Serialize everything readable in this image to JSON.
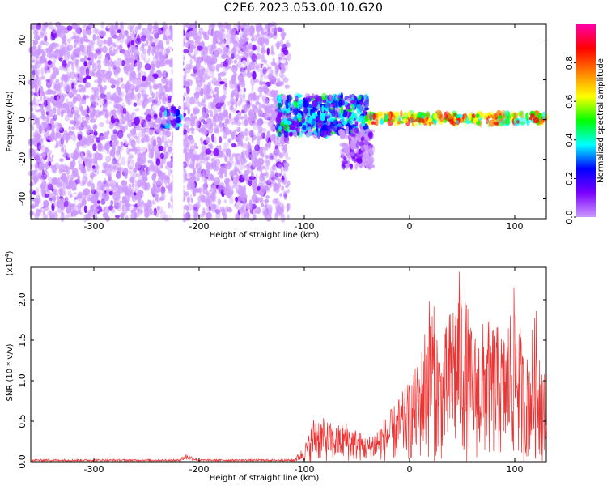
{
  "figure": {
    "title": "C2E6.2023.053.00.10.G20"
  },
  "chart_data": [
    {
      "type": "heatmap",
      "title": "C2E6.2023.053.00.10.G20",
      "xlabel": "Height of straight line (km)",
      "ylabel": "Frequency (Hz)",
      "xlim": [
        -360,
        130
      ],
      "ylim": [
        -50,
        48
      ],
      "xticks": [
        -300,
        -200,
        -100,
        0,
        100
      ],
      "yticks": [
        -40,
        -20,
        0,
        20,
        40
      ],
      "colorbar": {
        "label": "Normalized spectral amplitude",
        "range": [
          0,
          1
        ],
        "ticks": [
          0.0,
          0.2,
          0.4,
          0.6,
          0.8
        ],
        "colors": [
          "#ffffff",
          "#cc99ff",
          "#7a00ff",
          "#0000ff",
          "#00ffff",
          "#00ff00",
          "#ffff00",
          "#ff8000",
          "#ff0000",
          "#ff00aa"
        ]
      },
      "regions": [
        {
          "name": "diffuse noise",
          "x": [
            -360,
            -115
          ],
          "freq": [
            -50,
            48
          ],
          "amplitude": 0.12
        },
        {
          "name": "noise gap",
          "x": [
            -225,
            -215
          ],
          "freq": [
            -50,
            48
          ],
          "amplitude": 0.02
        },
        {
          "name": "spot",
          "x": [
            -235,
            -218
          ],
          "freq": [
            -4,
            6
          ],
          "amplitude": 0.3
        },
        {
          "name": "turbulent band",
          "x": [
            -125,
            -40
          ],
          "freq": [
            -8,
            12
          ],
          "amplitude": 0.35
        },
        {
          "name": "tail",
          "x": [
            -65,
            -35
          ],
          "freq": [
            -24,
            -5
          ],
          "amplitude": 0.15
        },
        {
          "name": "stable line",
          "x": [
            -40,
            130
          ],
          "freq": [
            -2,
            3
          ],
          "amplitude": 0.8
        }
      ]
    },
    {
      "type": "line",
      "xlabel": "Height of straight line (km)",
      "ylabel": "SNR (10 * v/v)",
      "scale_label": "(x10",
      "scale_exponent": "4",
      "scale_close": ")",
      "xlim": [
        -360,
        130
      ],
      "ylim": [
        0,
        2.4
      ],
      "xticks": [
        -300,
        -200,
        -100,
        0,
        100
      ],
      "yticks": [
        0.0,
        0.5,
        1.0,
        1.5,
        2.0
      ],
      "color": "#ee3333",
      "envelope": [
        {
          "x": -360,
          "y": 0.03
        },
        {
          "x": -220,
          "y": 0.03
        },
        {
          "x": -212,
          "y": 0.1
        },
        {
          "x": -200,
          "y": 0.03
        },
        {
          "x": -110,
          "y": 0.03
        },
        {
          "x": -100,
          "y": 0.2
        },
        {
          "x": -90,
          "y": 0.6
        },
        {
          "x": -70,
          "y": 0.45
        },
        {
          "x": -60,
          "y": 0.5
        },
        {
          "x": -40,
          "y": 0.3
        },
        {
          "x": -20,
          "y": 0.6
        },
        {
          "x": -10,
          "y": 0.8
        },
        {
          "x": 0,
          "y": 1.0
        },
        {
          "x": 10,
          "y": 1.3
        },
        {
          "x": 20,
          "y": 2.2
        },
        {
          "x": 30,
          "y": 1.4
        },
        {
          "x": 40,
          "y": 2.0
        },
        {
          "x": 48,
          "y": 2.4
        },
        {
          "x": 60,
          "y": 1.6
        },
        {
          "x": 75,
          "y": 1.8
        },
        {
          "x": 90,
          "y": 1.6
        },
        {
          "x": 100,
          "y": 2.2
        },
        {
          "x": 110,
          "y": 1.2
        },
        {
          "x": 120,
          "y": 1.9
        },
        {
          "x": 130,
          "y": 1.0
        }
      ]
    }
  ]
}
